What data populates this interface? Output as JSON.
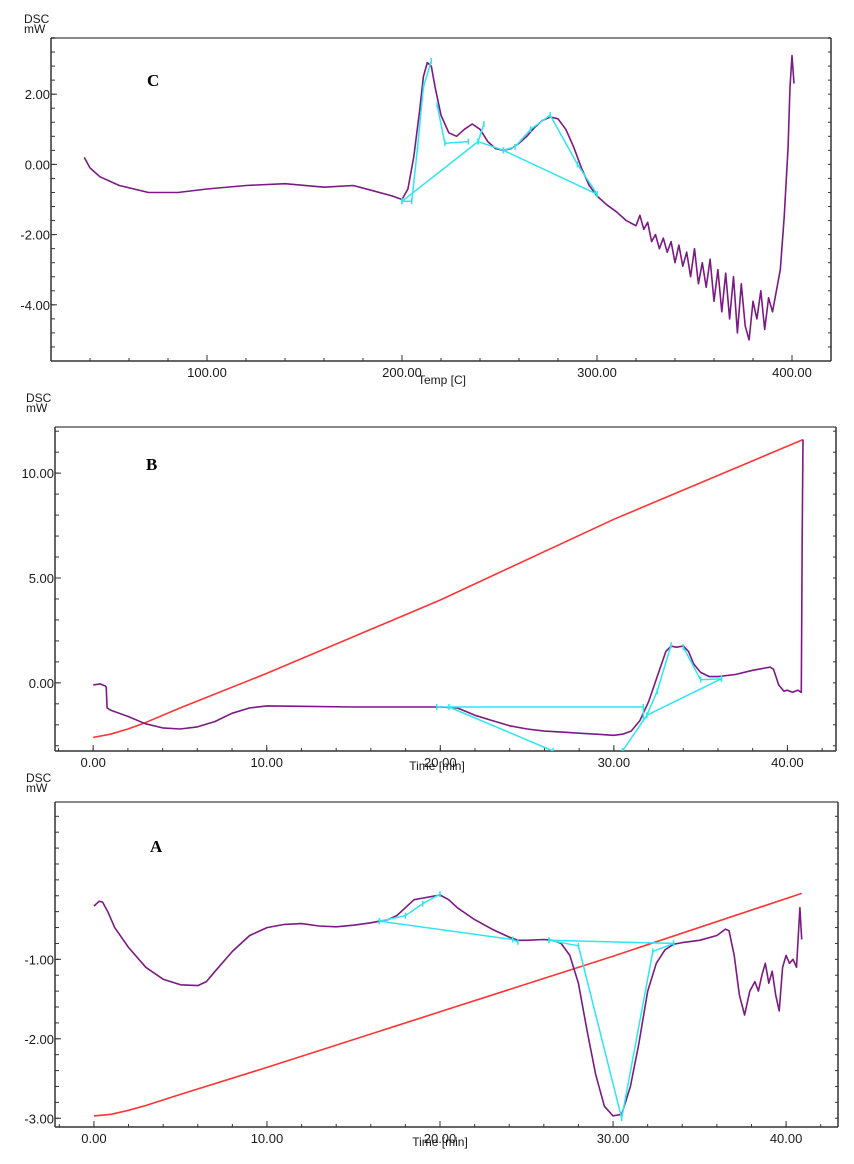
{
  "chart_data": [
    {
      "id": "C",
      "type": "line",
      "panel_label": "C",
      "ylabel_line1": "DSC",
      "ylabel_line2": "mW",
      "xlabel": "Temp  [C]",
      "xlim": [
        20,
        420
      ],
      "ylim": [
        -5.6,
        3.6
      ],
      "x_ticks": [
        100,
        200,
        300,
        400
      ],
      "x_tick_labels": [
        "100.00",
        "200.00",
        "300.00",
        "400.00"
      ],
      "y_ticks": [
        2,
        0,
        -2,
        -4
      ],
      "y_tick_labels": [
        "2.00",
        "0.00",
        "-2.00",
        "-4.00"
      ],
      "x_minor_step": 20,
      "y_minor_step": 0.4,
      "colors": {
        "dsc": "#7a1a82",
        "baseline": "#2ee6f0"
      },
      "series": [
        {
          "name": "DSC",
          "color": "#7a1a82",
          "x": [
            37,
            40,
            45,
            55,
            70,
            85,
            100,
            120,
            140,
            160,
            175,
            185,
            195,
            200,
            203,
            206,
            209,
            211,
            213,
            215,
            217,
            220,
            224,
            228,
            232,
            236,
            240,
            244,
            248,
            252,
            256,
            260,
            264,
            268,
            272,
            276,
            280,
            284,
            288,
            292,
            296,
            300,
            305,
            310,
            315,
            320,
            322,
            324,
            326,
            328,
            330,
            332,
            334,
            336,
            338,
            340,
            342,
            344,
            346,
            348,
            350,
            352,
            354,
            356,
            358,
            360,
            362,
            364,
            366,
            368,
            370,
            372,
            374,
            376,
            378,
            380,
            382,
            384,
            386,
            388,
            390,
            392,
            394,
            396,
            398,
            399,
            400,
            401
          ],
          "y": [
            0.2,
            -0.1,
            -0.35,
            -0.6,
            -0.8,
            -0.8,
            -0.7,
            -0.6,
            -0.55,
            -0.65,
            -0.6,
            -0.75,
            -0.9,
            -1.0,
            -0.7,
            0.2,
            1.5,
            2.5,
            2.9,
            2.8,
            2.2,
            1.4,
            0.9,
            0.8,
            1.0,
            1.15,
            1.0,
            0.65,
            0.45,
            0.4,
            0.45,
            0.6,
            0.8,
            1.05,
            1.25,
            1.35,
            1.3,
            1.0,
            0.5,
            -0.1,
            -0.6,
            -0.9,
            -1.15,
            -1.35,
            -1.6,
            -1.75,
            -1.45,
            -1.85,
            -1.65,
            -2.2,
            -2.0,
            -2.4,
            -2.1,
            -2.5,
            -2.2,
            -2.8,
            -2.3,
            -2.9,
            -2.5,
            -3.2,
            -2.4,
            -3.4,
            -2.8,
            -3.5,
            -2.7,
            -3.9,
            -3.0,
            -4.2,
            -3.1,
            -4.4,
            -3.2,
            -4.8,
            -3.4,
            -4.6,
            -5.0,
            -3.9,
            -4.4,
            -3.6,
            -4.7,
            -3.8,
            -4.2,
            -3.6,
            -3.0,
            -1.5,
            0.5,
            2.2,
            3.1,
            2.3
          ]
        },
        {
          "name": "Baseline",
          "color": "#2ee6f0",
          "segments": [
            [
              [
                200,
                -1.05
              ],
              [
                205,
                -1.05
              ],
              [
                208,
                0.5
              ],
              [
                211,
                2.2
              ],
              [
                215,
                2.95
              ]
            ],
            [
              [
                200,
                -1.05
              ],
              [
                239,
                0.65
              ],
              [
                252,
                0.4
              ],
              [
                300,
                -0.85
              ]
            ],
            [
              [
                218,
                1.7
              ],
              [
                222,
                0.6
              ],
              [
                234,
                0.65
              ]
            ],
            [
              [
                239,
                0.65
              ],
              [
                242,
                1.15
              ]
            ],
            [
              [
                252,
                0.4
              ],
              [
                258,
                0.5
              ],
              [
                266,
                1.0
              ],
              [
                276,
                1.4
              ]
            ],
            [
              [
                276,
                1.4
              ],
              [
                290,
                0.0
              ],
              [
                300,
                -0.85
              ]
            ]
          ]
        }
      ]
    },
    {
      "id": "B",
      "type": "line",
      "panel_label": "B",
      "ylabel_line1": "DSC",
      "ylabel_line2": "mW",
      "xlabel": "Time  [min]",
      "xlim": [
        -2.2,
        42.8
      ],
      "ylim": [
        -3.25,
        12.2
      ],
      "x_ticks": [
        0,
        10,
        20,
        30,
        40
      ],
      "x_tick_labels": [
        "0.00",
        "10.00",
        "20.00",
        "30.00",
        "40.00"
      ],
      "y_ticks": [
        10,
        5,
        0
      ],
      "y_tick_labels": [
        "10.00",
        "5.00",
        "0.00"
      ],
      "x_minor_step": 2,
      "y_minor_step": 1,
      "colors": {
        "dsc": "#7a1a82",
        "temperature": "#ff3333",
        "baseline": "#2ee6f0"
      },
      "series": [
        {
          "name": "Temperature",
          "color": "#ff3333",
          "x": [
            0,
            1,
            2,
            3,
            5,
            10,
            20,
            30,
            40.9
          ],
          "y": [
            -2.6,
            -2.45,
            -2.2,
            -1.9,
            -1.2,
            0.45,
            3.95,
            7.8,
            11.6
          ]
        },
        {
          "name": "DSC",
          "color": "#7a1a82",
          "x": [
            0,
            0.4,
            0.7,
            0.75,
            0.8,
            1,
            2,
            3,
            4,
            5,
            6,
            7,
            8,
            9,
            10,
            12,
            15,
            18,
            20,
            21,
            22,
            23,
            24,
            25,
            26,
            27,
            28,
            29,
            30,
            30.5,
            31,
            31.5,
            32,
            32.5,
            33,
            33.3,
            33.6,
            34,
            34.3,
            34.6,
            35,
            35.5,
            36,
            37,
            38,
            39,
            39.2,
            39.5,
            39.8,
            40,
            40.3,
            40.6,
            40.8,
            40.85,
            40.9
          ],
          "y": [
            -0.1,
            -0.05,
            -0.15,
            -0.2,
            -1.2,
            -1.3,
            -1.6,
            -1.95,
            -2.15,
            -2.2,
            -2.1,
            -1.85,
            -1.45,
            -1.2,
            -1.1,
            -1.12,
            -1.15,
            -1.15,
            -1.15,
            -1.2,
            -1.55,
            -1.8,
            -2.05,
            -2.2,
            -2.3,
            -2.35,
            -2.4,
            -2.45,
            -2.5,
            -2.45,
            -2.3,
            -1.8,
            -0.9,
            0.3,
            1.5,
            1.75,
            1.7,
            1.75,
            1.5,
            0.9,
            0.5,
            0.3,
            0.3,
            0.4,
            0.6,
            0.75,
            0.65,
            -0.1,
            -0.4,
            -0.35,
            -0.45,
            -0.35,
            -0.45,
            7.0,
            11.6
          ]
        },
        {
          "name": "Baseline",
          "color": "#2ee6f0",
          "segments": [
            [
              [
                19.8,
                -1.15
              ],
              [
                31.7,
                -1.15
              ],
              [
                31.7,
                -1.7
              ]
            ],
            [
              [
                20.5,
                -1.15
              ],
              [
                26.5,
                -3.25
              ]
            ],
            [
              [
                30.5,
                -3.25
              ],
              [
                31.9,
                -1.55
              ],
              [
                32.5,
                -0.4
              ],
              [
                33.3,
                1.8
              ]
            ],
            [
              [
                31.9,
                -1.55
              ],
              [
                36.2,
                0.2
              ]
            ],
            [
              [
                34.0,
                1.7
              ],
              [
                35.0,
                0.15
              ],
              [
                36.2,
                0.2
              ]
            ]
          ]
        }
      ]
    },
    {
      "id": "A",
      "type": "line",
      "panel_label": "A",
      "ylabel_line1": "DSC",
      "ylabel_line2": "mW",
      "xlabel": "Time  [min]",
      "xlim": [
        -2.25,
        43.0
      ],
      "ylim": [
        -3.11,
        0.98
      ],
      "x_ticks": [
        0,
        10,
        20,
        30,
        40
      ],
      "x_tick_labels": [
        "0.00",
        "10.00",
        "20.00",
        "30.00",
        "40.00"
      ],
      "y_ticks": [
        -1,
        -2,
        -3
      ],
      "y_tick_labels": [
        "-1.00",
        "-2.00",
        "-3.00"
      ],
      "x_minor_step": 2,
      "y_minor_step": 0.2,
      "colors": {
        "dsc": "#7a1a82",
        "temperature": "#ff3333",
        "baseline": "#2ee6f0"
      },
      "series": [
        {
          "name": "Temperature",
          "color": "#ff3333",
          "x": [
            0,
            1,
            2,
            3,
            5,
            10,
            20,
            30,
            40.9
          ],
          "y": [
            -2.97,
            -2.95,
            -2.9,
            -2.84,
            -2.7,
            -2.36,
            -1.66,
            -0.96,
            -0.17
          ]
        },
        {
          "name": "DSC",
          "color": "#7a1a82",
          "x": [
            0,
            0.3,
            0.5,
            0.8,
            1.2,
            2,
            3,
            4,
            5,
            6,
            6.5,
            7,
            8,
            9,
            10,
            11,
            12,
            13,
            14,
            15,
            16,
            16.5,
            17,
            17.5,
            18,
            18.5,
            19,
            19.5,
            20,
            20.5,
            21,
            22,
            23,
            24,
            24.5,
            25,
            26,
            26.5,
            27,
            27.5,
            28,
            28.5,
            29,
            29.5,
            30,
            30.5,
            31,
            31.5,
            32,
            32.5,
            33,
            33.5,
            34,
            35,
            36,
            36.5,
            36.7,
            37,
            37.3,
            37.6,
            37.9,
            38.2,
            38.4,
            38.6,
            38.8,
            39,
            39.2,
            39.4,
            39.6,
            39.8,
            40,
            40.2,
            40.4,
            40.6,
            40.8,
            40.9
          ],
          "y": [
            -0.33,
            -0.27,
            -0.28,
            -0.4,
            -0.6,
            -0.85,
            -1.1,
            -1.25,
            -1.32,
            -1.33,
            -1.28,
            -1.15,
            -0.9,
            -0.7,
            -0.6,
            -0.56,
            -0.55,
            -0.58,
            -0.59,
            -0.57,
            -0.54,
            -0.52,
            -0.5,
            -0.45,
            -0.35,
            -0.25,
            -0.23,
            -0.21,
            -0.19,
            -0.25,
            -0.35,
            -0.5,
            -0.62,
            -0.72,
            -0.76,
            -0.76,
            -0.75,
            -0.76,
            -0.8,
            -0.95,
            -1.3,
            -1.9,
            -2.45,
            -2.85,
            -2.97,
            -2.95,
            -2.6,
            -2.05,
            -1.4,
            -1.05,
            -0.88,
            -0.81,
            -0.79,
            -0.76,
            -0.7,
            -0.62,
            -0.64,
            -0.95,
            -1.45,
            -1.7,
            -1.4,
            -1.28,
            -1.4,
            -1.2,
            -1.05,
            -1.3,
            -1.15,
            -1.45,
            -1.65,
            -1.1,
            -0.95,
            -1.05,
            -1.0,
            -1.1,
            -0.35,
            -0.75
          ]
        },
        {
          "name": "Baseline",
          "color": "#2ee6f0",
          "segments": [
            [
              [
                16.5,
                -0.52
              ],
              [
                24.2,
                -0.75
              ],
              [
                24.5,
                -0.78
              ]
            ],
            [
              [
                16.5,
                -0.52
              ],
              [
                18.0,
                -0.45
              ],
              [
                19.0,
                -0.3
              ],
              [
                20.0,
                -0.18
              ]
            ],
            [
              [
                26.3,
                -0.76
              ],
              [
                33.5,
                -0.8
              ]
            ],
            [
              [
                26.3,
                -0.76
              ],
              [
                28.0,
                -0.83
              ],
              [
                30.5,
                -3.0
              ],
              [
                32.3,
                -0.9
              ],
              [
                33.5,
                -0.8
              ]
            ]
          ]
        }
      ]
    }
  ]
}
